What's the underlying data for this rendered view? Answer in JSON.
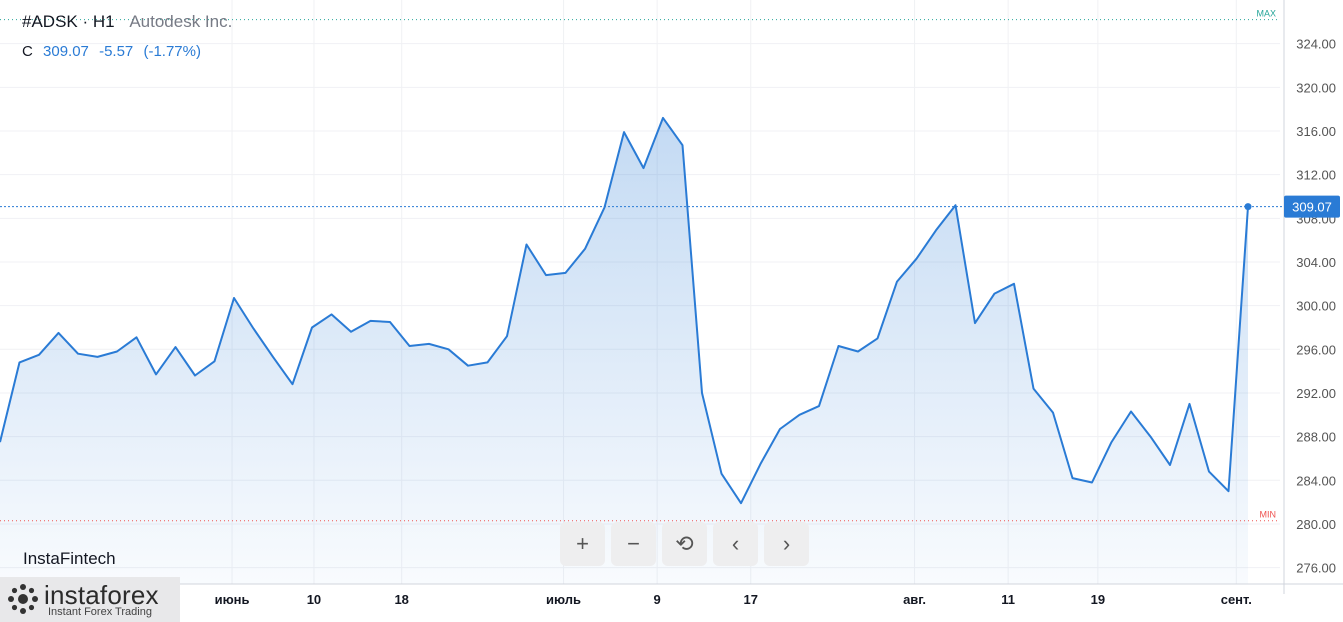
{
  "header": {
    "symbol": "#ADSK · H1",
    "company": "Autodesk Inc.",
    "close_label": "C",
    "close_value": "309.07",
    "change": "-5.57",
    "change_pct": "(-1.77%)"
  },
  "brand": "InstaFintech",
  "logo": {
    "main": "instaforex",
    "sub": "Instant Forex Trading"
  },
  "toolbar": {
    "zoom_in": "+",
    "zoom_out": "−",
    "reset": "⟲",
    "prev": "‹",
    "next": "›"
  },
  "colors": {
    "line": "#2a7bd5",
    "max": "#26a69a",
    "min": "#ef5350",
    "price_tag": "#2a7bd5"
  },
  "chart_data": {
    "type": "area",
    "title": "",
    "ylim": [
      274.5,
      328.0
    ],
    "y_ticks": [
      "324.00",
      "320.00",
      "316.00",
      "312.00",
      "308.00",
      "304.00",
      "300.00",
      "296.00",
      "292.00",
      "288.00",
      "284.00",
      "280.00",
      "276.00"
    ],
    "y_tick_values": [
      324,
      320,
      316,
      312,
      308,
      304,
      300,
      296,
      292,
      288,
      284,
      280,
      276
    ],
    "x_ticks": [
      "июнь",
      "10",
      "18",
      "июль",
      "9",
      "17",
      "авг.",
      "11",
      "19",
      "сент."
    ],
    "x_tick_index": [
      11.9,
      16.1,
      20.6,
      28.9,
      33.7,
      38.5,
      46.9,
      51.7,
      56.3,
      63.4
    ],
    "max_label": "MAX",
    "min_label": "MIN",
    "max_value": 326.2,
    "min_value": 280.3,
    "last_price": 309.07,
    "last_price_label": "309.07",
    "x_count": 65,
    "series": [
      {
        "values": [
          287.5,
          294.8,
          295.5,
          297.5,
          295.6,
          295.3,
          295.8,
          297.1,
          293.7,
          296.2,
          293.6,
          294.9,
          300.7,
          297.9,
          295.3,
          292.8,
          298.0,
          299.2,
          297.6,
          298.6,
          298.5,
          296.3,
          296.5,
          296.0,
          294.5,
          294.8,
          297.2,
          305.6,
          302.8,
          303.0,
          305.2,
          309.0,
          315.9,
          312.6,
          317.2,
          314.7,
          292.0,
          284.6,
          281.9,
          285.5,
          288.7,
          290.0,
          290.8,
          296.3,
          295.8,
          297.0,
          302.2,
          304.3,
          306.9,
          309.2,
          298.4,
          301.1,
          302.0,
          292.4,
          290.2,
          284.2,
          283.8,
          287.5,
          290.3,
          288.0,
          285.4,
          291.0,
          284.8,
          283.0,
          309.07
        ]
      }
    ]
  }
}
